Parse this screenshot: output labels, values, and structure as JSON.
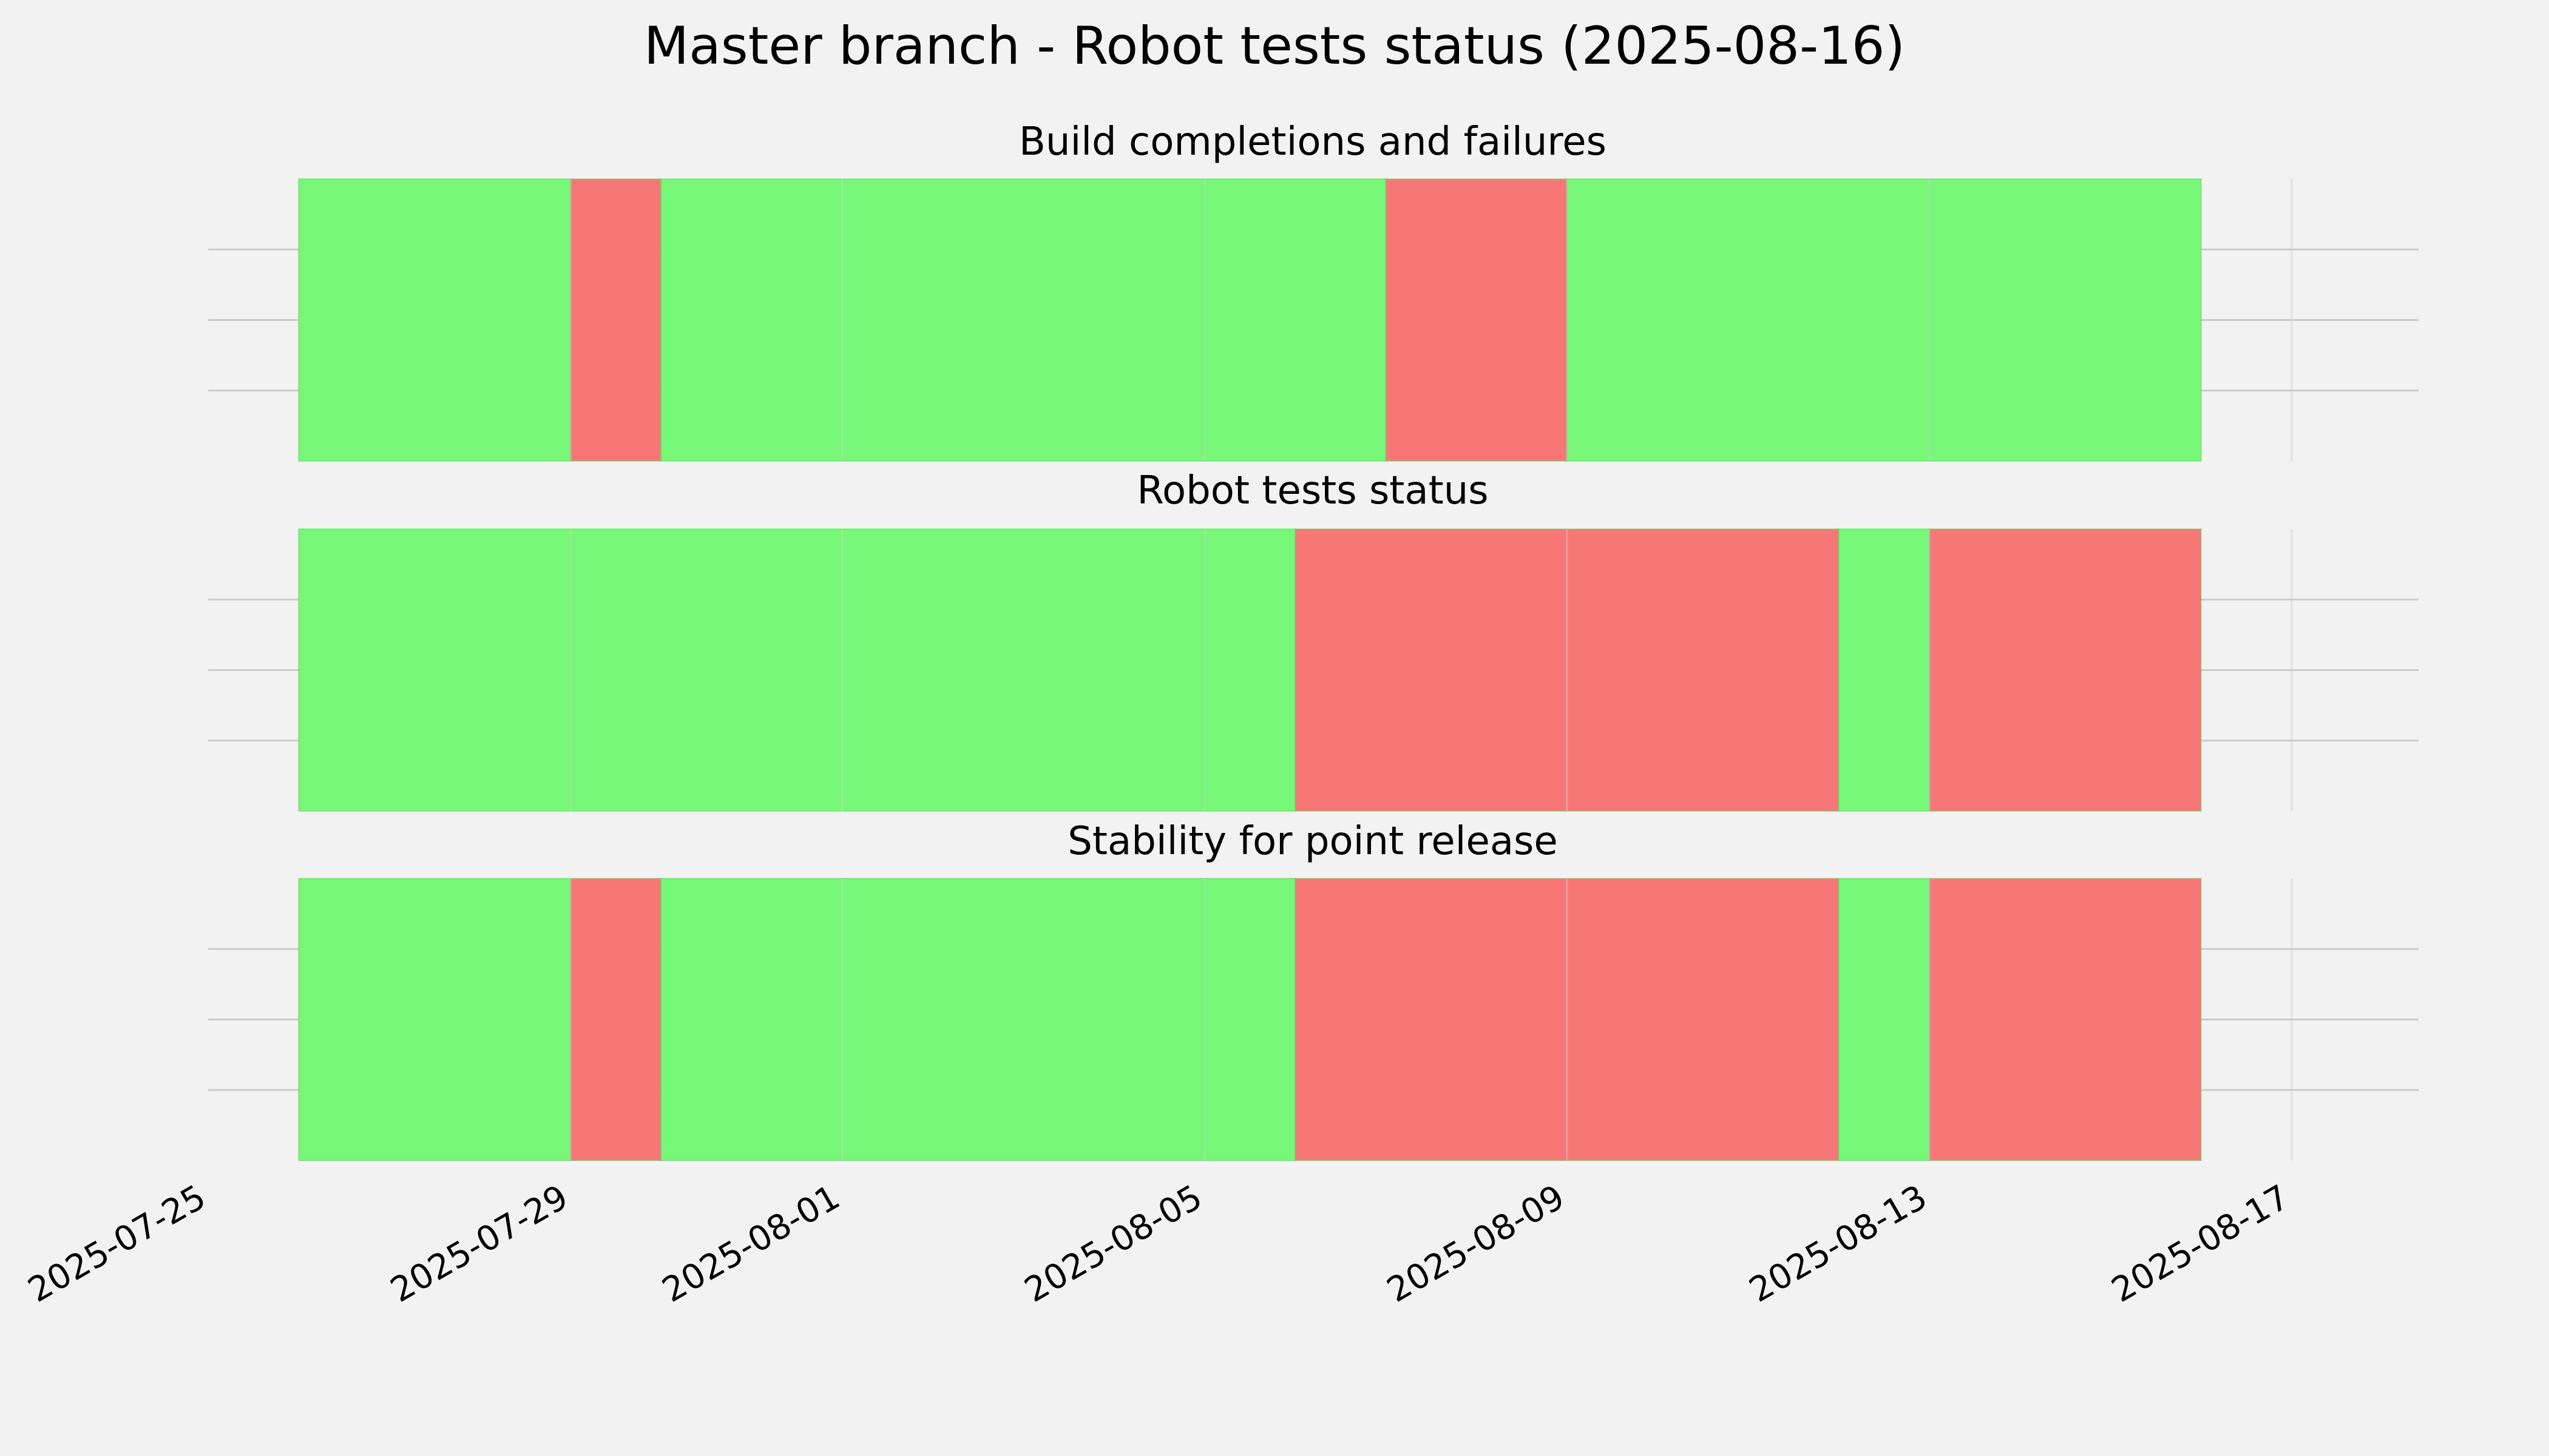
{
  "title": "Master branch - Robot tests status (2025-08-16)",
  "colors": {
    "background": "#f2f2f2",
    "pass": "#77f777",
    "fail": "#f77777",
    "grid": "#cbcbcb",
    "segment_edge": "#5ed65e"
  },
  "chart_data": {
    "type": "area",
    "x_axis": {
      "type": "date",
      "range": [
        "2025-07-25",
        "2025-08-17"
      ],
      "tick_labels": [
        "2025-07-25",
        "2025-07-29",
        "2025-08-01",
        "2025-08-05",
        "2025-08-09",
        "2025-08-13",
        "2025-08-17"
      ]
    },
    "grid": true,
    "panels": [
      {
        "title": "Build completions and failures",
        "segments": [
          {
            "start": "2025-07-26",
            "end": "2025-07-29",
            "status": "pass"
          },
          {
            "start": "2025-07-29",
            "end": "2025-07-30",
            "status": "fail"
          },
          {
            "start": "2025-07-30",
            "end": "2025-08-07",
            "status": "pass"
          },
          {
            "start": "2025-08-07",
            "end": "2025-08-09",
            "status": "fail"
          },
          {
            "start": "2025-08-09",
            "end": "2025-08-16",
            "status": "pass"
          }
        ]
      },
      {
        "title": "Robot tests status",
        "segments": [
          {
            "start": "2025-07-26",
            "end": "2025-08-06",
            "status": "pass"
          },
          {
            "start": "2025-08-06",
            "end": "2025-08-12",
            "status": "fail"
          },
          {
            "start": "2025-08-12",
            "end": "2025-08-13",
            "status": "pass"
          },
          {
            "start": "2025-08-13",
            "end": "2025-08-16",
            "status": "fail"
          }
        ]
      },
      {
        "title": "Stability for point release",
        "segments": [
          {
            "start": "2025-07-26",
            "end": "2025-07-29",
            "status": "pass"
          },
          {
            "start": "2025-07-29",
            "end": "2025-07-30",
            "status": "fail"
          },
          {
            "start": "2025-07-30",
            "end": "2025-08-06",
            "status": "pass"
          },
          {
            "start": "2025-08-06",
            "end": "2025-08-12",
            "status": "fail"
          },
          {
            "start": "2025-08-12",
            "end": "2025-08-13",
            "status": "pass"
          },
          {
            "start": "2025-08-13",
            "end": "2025-08-16",
            "status": "fail"
          }
        ]
      }
    ]
  }
}
